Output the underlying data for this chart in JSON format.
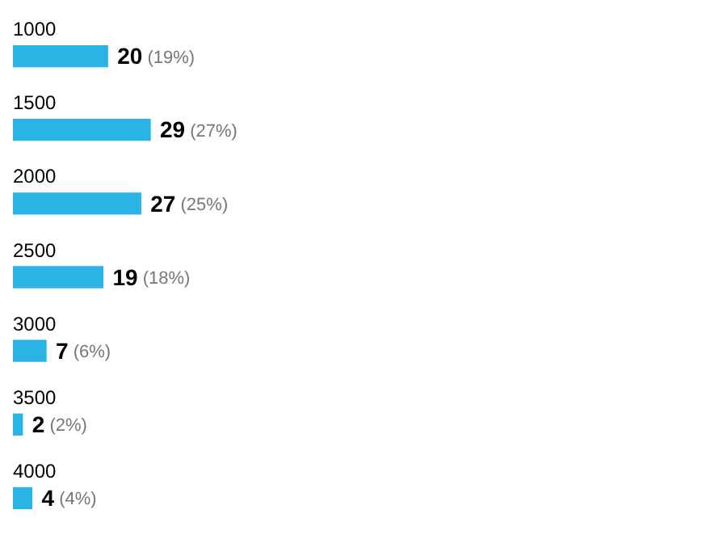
{
  "chart_data": {
    "type": "bar",
    "orientation": "horizontal",
    "categories": [
      "1000",
      "1500",
      "2000",
      "2500",
      "3000",
      "3500",
      "4000"
    ],
    "values": [
      20,
      29,
      27,
      19,
      7,
      2,
      4
    ],
    "value_labels": [
      "20 (19%)",
      "29 (27%)",
      "27 (25%)",
      "19 (18%)",
      "7 (6%)",
      "2 (2%)",
      "4 (4%)"
    ],
    "color": "#2ab4e6"
  }
}
